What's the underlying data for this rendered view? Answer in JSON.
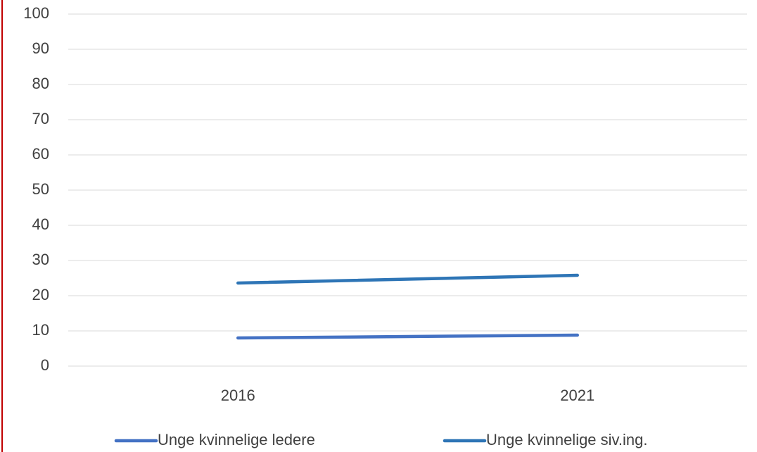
{
  "chart_data": {
    "type": "line",
    "categories": [
      "2016",
      "2021"
    ],
    "series": [
      {
        "name": "Unge kvinnelige ledere",
        "color": "#4472c4",
        "values": [
          8.0,
          8.8
        ]
      },
      {
        "name": "Unge kvinnelige siv.ing.",
        "color": "#2e75b6",
        "values": [
          23.6,
          25.8
        ]
      }
    ],
    "ylim": [
      0,
      100
    ],
    "yticks": [
      0,
      10,
      20,
      30,
      40,
      50,
      60,
      70,
      80,
      90,
      100
    ],
    "grid": true,
    "legend": "bottom"
  }
}
